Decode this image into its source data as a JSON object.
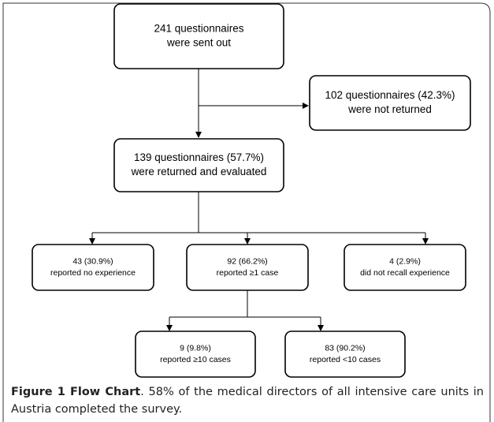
{
  "nodes": [
    {
      "lines": [
        "241 questionnaires",
        "were sent out"
      ]
    },
    {
      "lines": [
        "102 questionnaires (42.3%)",
        "were not returned"
      ]
    },
    {
      "lines": [
        "139 questionnaires (57.7%)",
        "were returned and evaluated"
      ]
    },
    {
      "lines": [
        "43 (30.9%)",
        "reported no experience"
      ]
    },
    {
      "lines": [
        "92 (66.2%)",
        "reported ≥1 case"
      ]
    },
    {
      "lines": [
        "4 (2.9%)",
        "did not recall experience"
      ]
    },
    {
      "lines": [
        "9 (9.8%)",
        "reported ≥10 cases"
      ]
    },
    {
      "lines": [
        "83 (90.2%)",
        "reported <10 cases"
      ]
    }
  ],
  "caption": {
    "label": "Figure 1 Flow Chart",
    "text": ". 58% of the medical directors of all intensive care units in Austria completed the survey."
  }
}
